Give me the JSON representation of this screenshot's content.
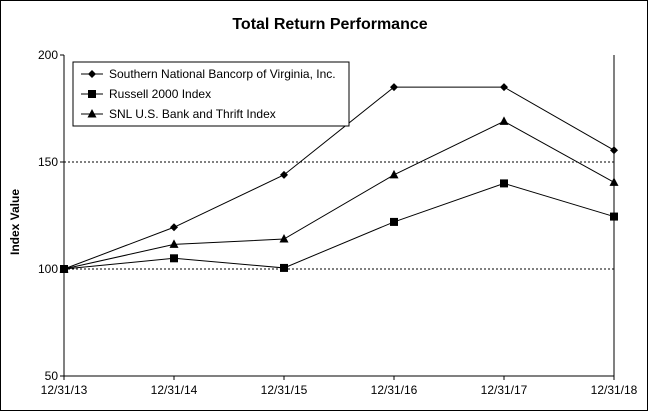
{
  "chart_data": {
    "type": "line",
    "title": "Total Return Performance",
    "xlabel": "",
    "ylabel": "Index Value",
    "categories": [
      "12/31/13",
      "12/31/14",
      "12/31/15",
      "12/31/16",
      "12/31/17",
      "12/31/18"
    ],
    "ylim": [
      50,
      200
    ],
    "yticks": [
      50,
      100,
      150,
      200
    ],
    "grid": "dashed horizontal at 100 and 150",
    "legend_position": "top-left",
    "series": [
      {
        "name": "Southern National Bancorp of Virginia, Inc.",
        "marker": "diamond",
        "values": [
          100,
          119.5,
          144,
          185,
          185,
          155.5
        ]
      },
      {
        "name": "Russell 2000 Index",
        "marker": "square",
        "values": [
          100,
          105,
          100.5,
          122,
          140,
          124.5
        ]
      },
      {
        "name": "SNL U.S. Bank and Thrift Index",
        "marker": "triangle",
        "values": [
          100,
          111.5,
          114,
          144,
          169,
          140.5
        ]
      }
    ]
  }
}
